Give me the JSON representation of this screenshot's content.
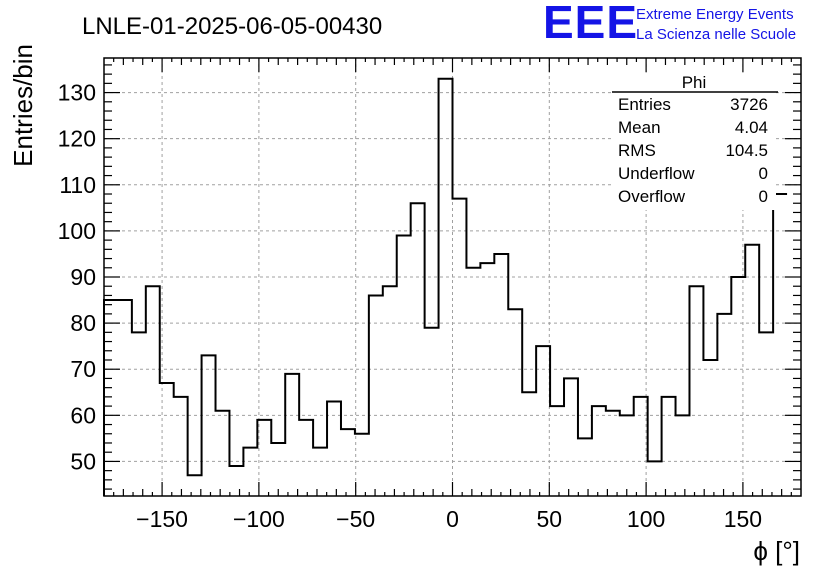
{
  "title": "LNLE-01-2025-06-05-00430",
  "logo": {
    "mark": "EEE",
    "line1": "Extreme Energy Events",
    "line2": "La Scienza nelle Scuole",
    "color": "#1414e6"
  },
  "stats_box": {
    "title": "Phi",
    "rows": [
      {
        "label": "Entries",
        "value": "3726"
      },
      {
        "label": "Mean",
        "value": "4.04"
      },
      {
        "label": "RMS",
        "value": "104.5"
      },
      {
        "label": "Underflow",
        "value": "0"
      },
      {
        "label": "Overflow",
        "value": "0"
      }
    ]
  },
  "chart_data": {
    "type": "bar",
    "style": "step-histogram",
    "title": "LNLE-01-2025-06-05-00430",
    "xlabel": "ϕ [°]",
    "ylabel": "Entries/bin",
    "xlim": [
      -180,
      180
    ],
    "ylim": [
      42.5,
      137.5
    ],
    "bin_edges_start": -180,
    "bin_width": 7.2,
    "values": [
      85,
      85,
      78,
      88,
      67,
      64,
      47,
      73,
      61,
      49,
      53,
      59,
      54,
      69,
      59,
      53,
      63,
      57,
      56,
      86,
      88,
      99,
      106,
      79,
      133,
      107,
      92,
      93,
      95,
      83,
      65,
      75,
      62,
      68,
      55,
      62,
      61,
      60,
      64,
      50,
      64,
      60,
      88,
      72,
      82,
      90,
      97,
      78,
      108
    ],
    "x_ticks": [
      -150,
      -100,
      -50,
      0,
      50,
      100,
      150
    ],
    "x_tick_labels": [
      "−150",
      "−100",
      "−50",
      "0",
      "50",
      "100",
      "150"
    ],
    "y_ticks": [
      50,
      60,
      70,
      80,
      90,
      100,
      110,
      120,
      130
    ],
    "y_tick_labels": [
      "50",
      "60",
      "70",
      "80",
      "90",
      "100",
      "110",
      "120",
      "130"
    ],
    "grid": true,
    "line_color": "#000000"
  }
}
